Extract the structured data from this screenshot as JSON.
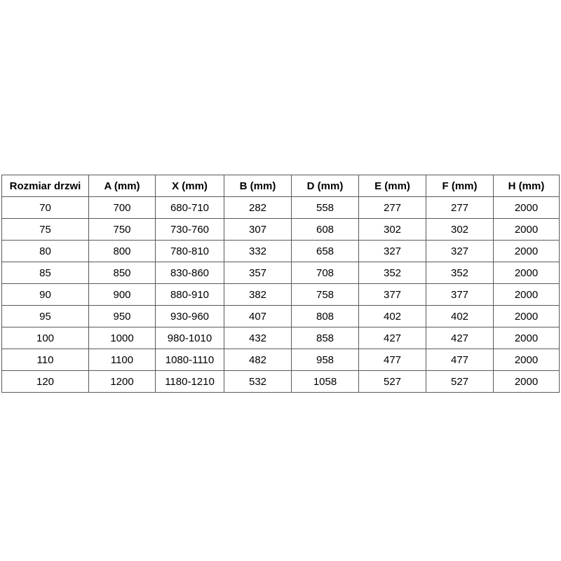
{
  "table": {
    "name": "door-size-table",
    "columns": [
      "Rozmiar drzwi",
      "A (mm)",
      "X (mm)",
      "B (mm)",
      "D (mm)",
      "E (mm)",
      "F (mm)",
      "H (mm)"
    ],
    "rows": [
      [
        "70",
        "700",
        "680-710",
        "282",
        "558",
        "277",
        "277",
        "2000"
      ],
      [
        "75",
        "750",
        "730-760",
        "307",
        "608",
        "302",
        "302",
        "2000"
      ],
      [
        "80",
        "800",
        "780-810",
        "332",
        "658",
        "327",
        "327",
        "2000"
      ],
      [
        "85",
        "850",
        "830-860",
        "357",
        "708",
        "352",
        "352",
        "2000"
      ],
      [
        "90",
        "900",
        "880-910",
        "382",
        "758",
        "377",
        "377",
        "2000"
      ],
      [
        "95",
        "950",
        "930-960",
        "407",
        "808",
        "402",
        "402",
        "2000"
      ],
      [
        "100",
        "1000",
        "980-1010",
        "432",
        "858",
        "427",
        "427",
        "2000"
      ],
      [
        "110",
        "1100",
        "1080-1110",
        "482",
        "958",
        "477",
        "477",
        "2000"
      ],
      [
        "120",
        "1200",
        "1180-1210",
        "532",
        "1058",
        "527",
        "527",
        "2000"
      ]
    ],
    "colors": {
      "border": "#595959",
      "text": "#000000",
      "background": "#ffffff"
    }
  }
}
